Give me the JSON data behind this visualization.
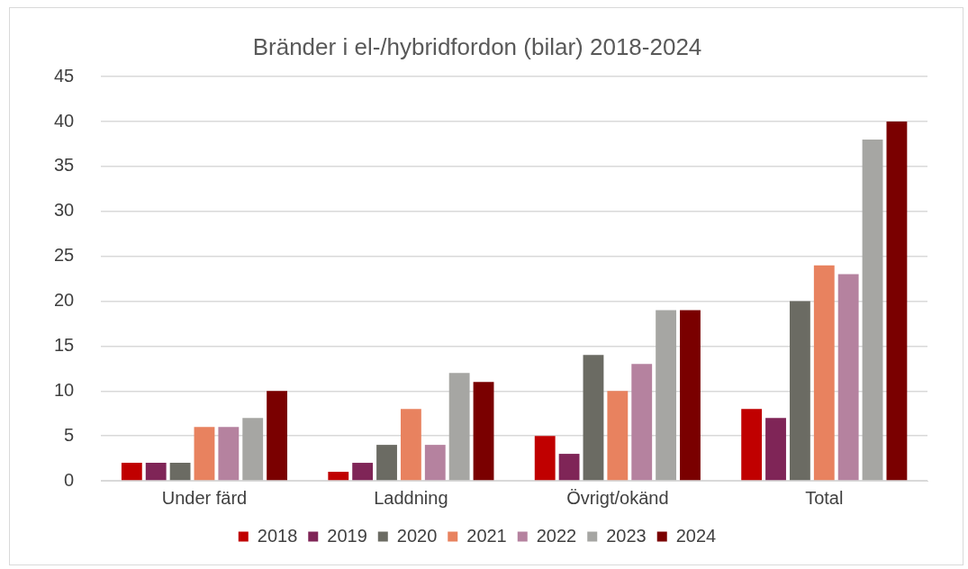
{
  "chart_data": {
    "type": "bar",
    "title": "Bränder i el-/hybridfordon (bilar) 2018-2024",
    "categories": [
      "Under färd",
      "Laddning",
      "Övrigt/okänd",
      "Total"
    ],
    "series": [
      {
        "name": "2018",
        "color": "#c00000",
        "values": [
          2,
          1,
          5,
          8
        ]
      },
      {
        "name": "2019",
        "color": "#7f2557",
        "values": [
          2,
          2,
          3,
          7
        ]
      },
      {
        "name": "2020",
        "color": "#6b6b63",
        "values": [
          2,
          4,
          14,
          20
        ]
      },
      {
        "name": "2021",
        "color": "#e8825f",
        "values": [
          6,
          8,
          10,
          24
        ]
      },
      {
        "name": "2022",
        "color": "#b5829f",
        "values": [
          6,
          4,
          13,
          23
        ]
      },
      {
        "name": "2023",
        "color": "#a6a6a3",
        "values": [
          7,
          12,
          19,
          38
        ]
      },
      {
        "name": "2024",
        "color": "#7a0000",
        "values": [
          10,
          11,
          19,
          40
        ]
      }
    ],
    "ylim": [
      0,
      45
    ],
    "yticks": [
      0,
      5,
      10,
      15,
      20,
      25,
      30,
      35,
      40,
      45
    ],
    "grid": "y",
    "legend": "bottom"
  }
}
